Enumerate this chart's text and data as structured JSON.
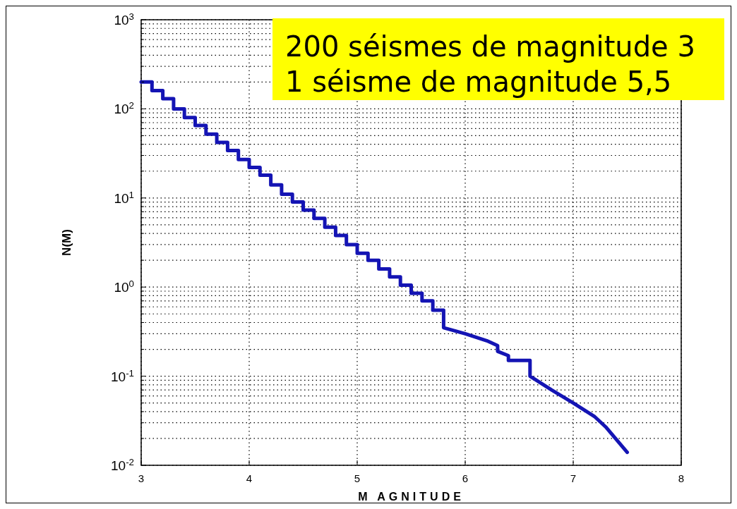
{
  "chart_data": {
    "type": "line",
    "xlabel": "M AGNITUDE",
    "ylabel": "N(M)",
    "log": "y",
    "grid": true,
    "line_style": "solid",
    "marker": "none",
    "annotations": [
      "200 séismes de magnitude 3",
      "1 séisme de magnitude 5,5"
    ],
    "xlim": [
      3,
      8
    ],
    "xticks": [
      3,
      4,
      5,
      6,
      7,
      8
    ],
    "ylim": [
      0.01,
      1000
    ],
    "yticks": [
      {
        "value": 0.01,
        "label": "10$^{-2}$"
      },
      {
        "value": 0.02,
        "label": null
      },
      {
        "value": 0.03,
        "label": null
      },
      {
        "value": 0.04,
        "label": null
      },
      {
        "value": 0.05,
        "label": null
      },
      {
        "value": 0.06,
        "label": null
      },
      {
        "value": 0.07,
        "label": null
      },
      {
        "value": 0.08,
        "label": null
      },
      {
        "value": 0.09,
        "label": null
      },
      {
        "value": 0.1,
        "label": "10$^{-1}$"
      },
      {
        "value": 0.2,
        "label": null
      },
      {
        "value": 0.3,
        "label": null
      },
      {
        "value": 0.4,
        "label": null
      },
      {
        "value": 0.5,
        "label": null
      },
      {
        "value": 0.6,
        "label": null
      },
      {
        "value": 0.7,
        "label": null
      },
      {
        "value": 0.8,
        "label": null
      },
      {
        "value": 0.9,
        "label": null
      },
      {
        "value": 1,
        "label": "10$^{0}$"
      },
      {
        "value": 2,
        "label": null
      },
      {
        "value": 3,
        "label": null
      },
      {
        "value": 4,
        "label": null
      },
      {
        "value": 5,
        "label": null
      },
      {
        "value": 6,
        "label": null
      },
      {
        "value": 7,
        "label": null
      },
      {
        "value": 8,
        "label": null
      },
      {
        "value": 9,
        "label": null
      },
      {
        "value": 10,
        "label": "10$^{1}$"
      },
      {
        "value": 20,
        "label": null
      },
      {
        "value": 30,
        "label": null
      },
      {
        "value": 40,
        "label": null
      },
      {
        "value": 50,
        "label": null
      },
      {
        "value": 60,
        "label": null
      },
      {
        "value": 70,
        "label": null
      },
      {
        "value": 80,
        "label": null
      },
      {
        "value": 90,
        "label": null
      },
      {
        "value": 100,
        "label": "10$^{2}$"
      },
      {
        "value": 200,
        "label": null
      },
      {
        "value": 300,
        "label": null
      },
      {
        "value": 400,
        "label": null
      },
      {
        "value": 500,
        "label": null
      },
      {
        "value": 600,
        "label": null
      },
      {
        "value": 700,
        "label": null
      },
      {
        "value": 800,
        "label": null
      },
      {
        "value": 900,
        "label": null
      },
      {
        "value": 1000,
        "label": "10$^{3}$"
      }
    ],
    "series": [
      {
        "color": "#1414b4",
        "x": [
          3.0,
          3.1,
          3.1,
          3.2,
          3.2,
          3.3,
          3.3,
          3.4,
          3.4,
          3.5,
          3.5,
          3.6,
          3.6,
          3.7,
          3.7,
          3.8,
          3.8,
          3.9,
          3.9,
          4.0,
          4.0,
          4.1,
          4.1,
          4.2,
          4.2,
          4.3,
          4.3,
          4.4,
          4.4,
          4.5,
          4.5,
          4.6,
          4.6,
          4.7,
          4.7,
          4.8,
          4.8,
          4.9,
          4.9,
          5.0,
          5.0,
          5.1,
          5.1,
          5.2,
          5.2,
          5.3,
          5.3,
          5.4,
          5.4,
          5.5,
          5.5,
          5.6,
          5.6,
          5.7,
          5.7,
          5.8,
          5.8,
          6.0,
          6.2,
          6.3,
          6.3,
          6.4,
          6.4,
          6.6,
          6.6,
          6.8,
          7.0,
          7.2,
          7.3,
          7.5
        ],
        "values": [
          200,
          200,
          160,
          160,
          130,
          130,
          100,
          100,
          80,
          80,
          65,
          65,
          52,
          52,
          42,
          42,
          34,
          34,
          27,
          27,
          22,
          22,
          18,
          18,
          14,
          14,
          11,
          11,
          9,
          9,
          7.3,
          7.3,
          5.9,
          5.9,
          4.7,
          4.7,
          3.8,
          3.8,
          3,
          3,
          2.4,
          2.4,
          2,
          2,
          1.6,
          1.6,
          1.3,
          1.3,
          1.05,
          1.05,
          0.85,
          0.85,
          0.7,
          0.7,
          0.55,
          0.55,
          0.35,
          0.3,
          0.25,
          0.22,
          0.19,
          0.17,
          0.15,
          0.15,
          0.1,
          0.07,
          0.05,
          0.035,
          0.027,
          0.014
        ]
      }
    ]
  }
}
